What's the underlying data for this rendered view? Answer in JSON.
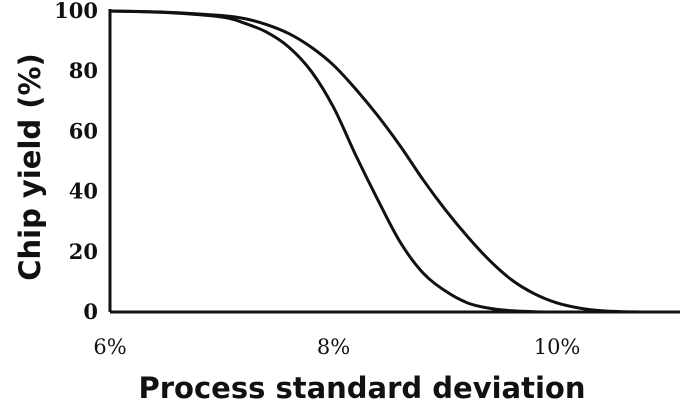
{
  "chart_data": {
    "type": "line",
    "title": "",
    "xlabel": "Process standard deviation",
    "ylabel": "Chip yield (%)",
    "x_ticks": [
      "6%",
      "8%",
      "10%"
    ],
    "x_tick_values": [
      6,
      8,
      10
    ],
    "y_ticks": [
      "0",
      "20",
      "40",
      "60",
      "80",
      "100"
    ],
    "y_tick_values": [
      0,
      20,
      40,
      60,
      80,
      100
    ],
    "xlim": [
      6,
      11.1
    ],
    "ylim": [
      0,
      100
    ],
    "grid": false,
    "legend": "none",
    "series": [
      {
        "color": "#111111",
        "x": [
          6.0,
          6.5,
          7.0,
          7.2,
          7.4,
          7.6,
          7.8,
          8.0,
          8.2,
          8.4,
          8.6,
          8.8,
          9.0,
          9.2,
          9.4,
          9.6,
          9.8,
          10.0
        ],
        "y": [
          100,
          99.5,
          98,
          96,
          93,
          88,
          80,
          68,
          52,
          37,
          23,
          13,
          7,
          3,
          1.2,
          0.4,
          0.1,
          0
        ]
      },
      {
        "color": "#111111",
        "x": [
          6.0,
          6.5,
          7.0,
          7.2,
          7.4,
          7.6,
          7.8,
          8.0,
          8.2,
          8.4,
          8.6,
          8.8,
          9.0,
          9.2,
          9.4,
          9.6,
          9.8,
          10.0,
          10.2,
          10.4,
          10.6,
          10.8
        ],
        "y": [
          100,
          99.6,
          98.5,
          97.5,
          95.5,
          92.5,
          88,
          82,
          74,
          65,
          55,
          44,
          34,
          25,
          17,
          10.5,
          6,
          3,
          1.3,
          0.4,
          0.1,
          0
        ]
      }
    ]
  }
}
